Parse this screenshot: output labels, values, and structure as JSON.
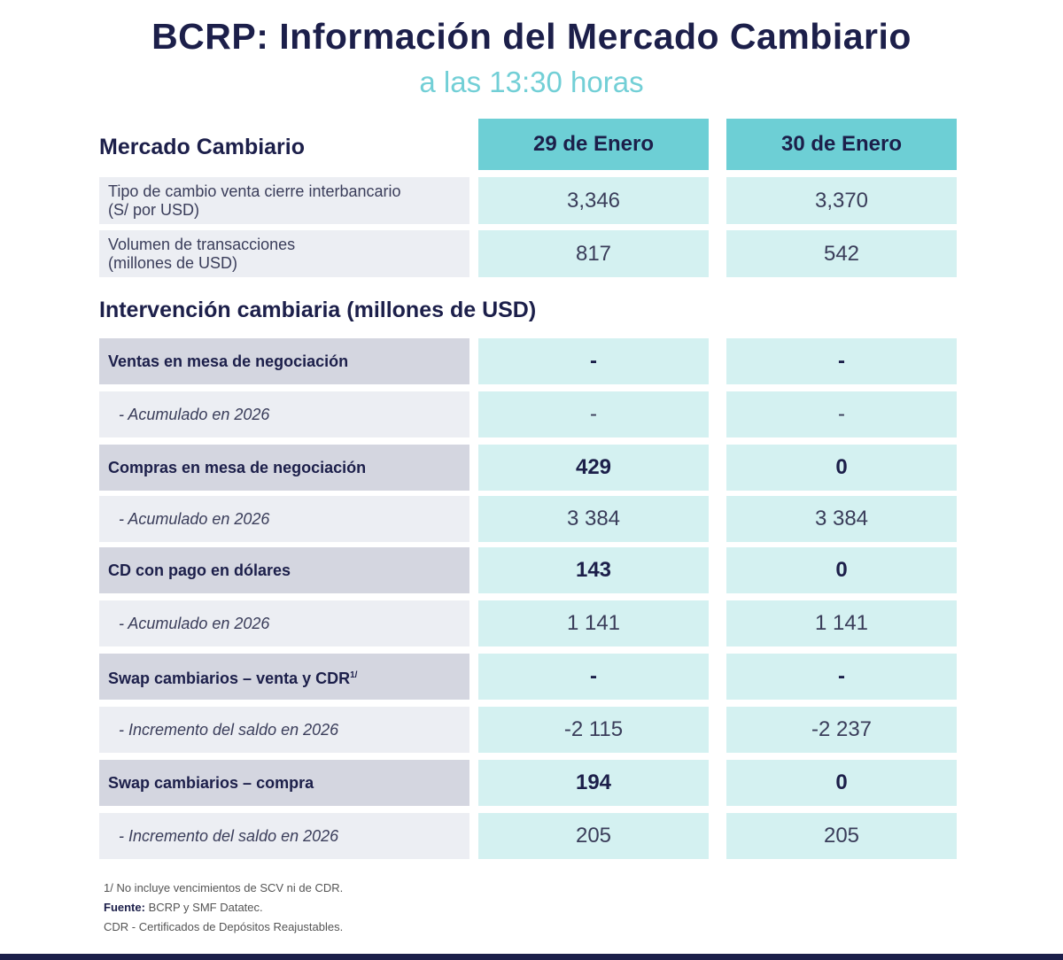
{
  "title": "BCRP: Información del Mercado Cambiario",
  "subtitle": "a las 13:30 horas",
  "market": {
    "section_title": "Mercado Cambiario",
    "columns": [
      "29 de Enero",
      "30 de Enero"
    ],
    "rows": [
      {
        "label1": "Tipo de cambio venta cierre interbancario",
        "label2": "(S/ por USD)",
        "values": [
          "3,346",
          "3,370"
        ]
      },
      {
        "label1": "Volumen de transacciones",
        "label2": "(millones de USD)",
        "values": [
          "817",
          "542"
        ]
      }
    ]
  },
  "intervention": {
    "section_title": "Intervención cambiaria (millones de USD)",
    "rows": [
      {
        "label": "Ventas en mesa de negociación",
        "type": "main",
        "values": [
          "-",
          "-"
        ]
      },
      {
        "label": "- Acumulado en 2026",
        "type": "sub",
        "values": [
          "-",
          "-"
        ]
      },
      {
        "label": "Compras en mesa de negociación",
        "type": "main",
        "values": [
          "429",
          "0"
        ]
      },
      {
        "label": "- Acumulado en 2026",
        "type": "sub",
        "values": [
          "3 384",
          "3 384"
        ]
      },
      {
        "label": "CD con pago en dólares",
        "type": "main",
        "values": [
          "143",
          "0"
        ]
      },
      {
        "label": "- Acumulado en 2026",
        "type": "sub",
        "values": [
          "1 141",
          "1 141"
        ]
      },
      {
        "label": "Swap cambiarios – venta y CDR",
        "sup": "1/",
        "type": "main",
        "values": [
          "-",
          "-"
        ]
      },
      {
        "label": "- Incremento del saldo en 2026",
        "type": "sub",
        "values": [
          "-2 115",
          "-2 237"
        ]
      },
      {
        "label": "Swap cambiarios – compra",
        "type": "main",
        "values": [
          "194",
          "0"
        ]
      },
      {
        "label": "- Incremento del saldo en 2026",
        "type": "sub",
        "values": [
          "205",
          "205"
        ]
      }
    ]
  },
  "notes": {
    "note1": "1/ No incluye vencimientos de SCV ni de CDR.",
    "source_label": "Fuente:",
    "source_text": " BCRP y SMF Datatec.",
    "note3": "CDR - Certificados de Depósitos Reajustables."
  }
}
